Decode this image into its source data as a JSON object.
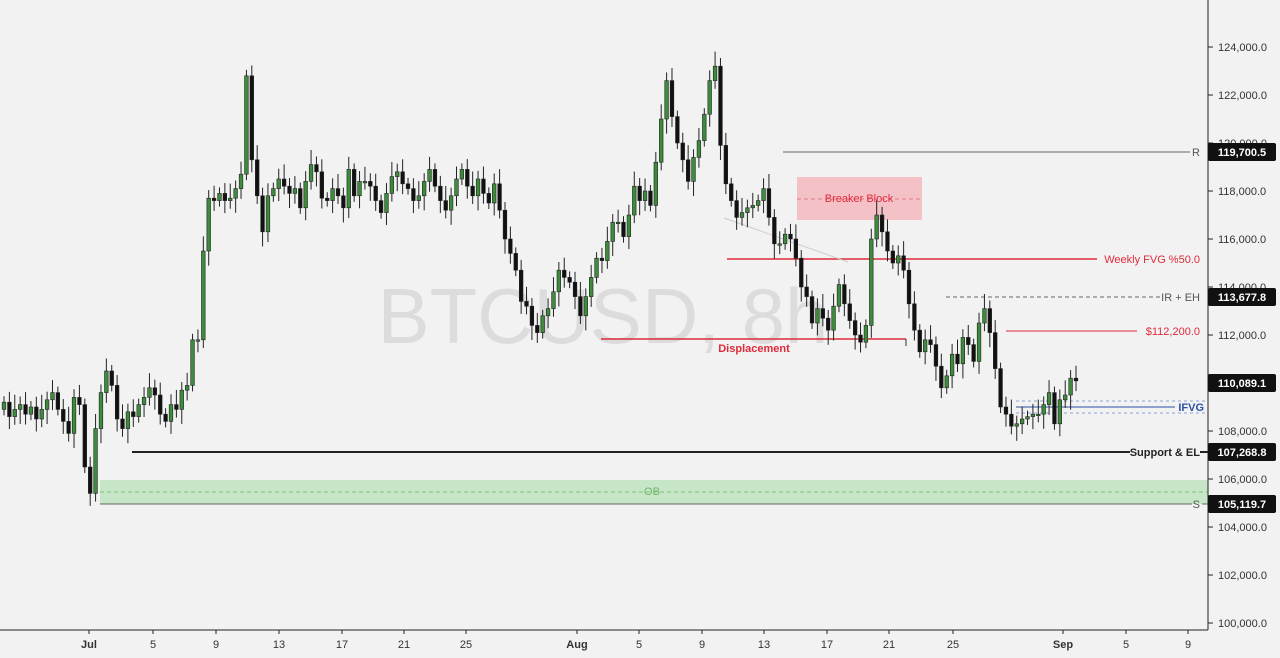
{
  "watermark": "BTCUSD, 8h",
  "colors": {
    "background": "#f2f2f2",
    "bull": "#3c8c3c",
    "bear": "#111111",
    "red": "#e02b3a",
    "blue": "#2f4fa8",
    "green_zone": "#bfe3bf",
    "pink_zone": "#f4b8c0",
    "tag_bg": "#111111"
  },
  "chart_data": {
    "type": "candlestick",
    "title": "",
    "xlabel": "",
    "ylabel": "",
    "ylim": [
      99800,
      125800
    ],
    "y_ticks": [
      "100,000.0",
      "102,000.0",
      "104,000.0",
      "106,000.0",
      "108,000.0",
      "110,000.0",
      "112,000.0",
      "114,000.0",
      "116,000.0",
      "118,000.0",
      "120,000.0",
      "122,000.0",
      "124,000.0"
    ],
    "x_ticks": [
      "Jul",
      "5",
      "9",
      "13",
      "17",
      "21",
      "25",
      "Aug",
      "5",
      "9",
      "13",
      "17",
      "21",
      "25",
      "Sep",
      "5",
      "9"
    ],
    "price_tags": [
      "119,700.5",
      "113,677.8",
      "110,089.1",
      "107,268.8",
      "105,119.7"
    ],
    "levels": [
      {
        "label": "R",
        "price": 119700
      },
      {
        "label": "Weekly FVG %50.0",
        "price": 115200
      },
      {
        "label": "IR + EH",
        "price": 113677
      },
      {
        "label": "$112,200.0",
        "price": 112200
      },
      {
        "label": "Displacement",
        "price": 111800
      },
      {
        "label": "IFVG",
        "price": 109100
      },
      {
        "label": "Support & EL",
        "price": 107268
      },
      {
        "label": "S",
        "price": 105119
      }
    ],
    "zones": [
      {
        "label": "Breaker Block",
        "from": 116800,
        "to": 118600
      },
      {
        "label": "OB",
        "from": 105400,
        "to": 106100
      }
    ],
    "closes": [
      109200,
      108600,
      108900,
      109100,
      108700,
      109000,
      108500,
      108900,
      109300,
      109600,
      108900,
      108400,
      107900,
      109400,
      109100,
      106500,
      105400,
      108100,
      109600,
      110500,
      109900,
      108500,
      108100,
      108800,
      108600,
      109100,
      109400,
      109800,
      109500,
      108700,
      108400,
      109100,
      108900,
      109700,
      109900,
      111800,
      111800,
      115500,
      117700,
      117600,
      117900,
      117600,
      117700,
      118100,
      118700,
      122800,
      119300,
      117800,
      116300,
      117800,
      118100,
      118500,
      118200,
      117900,
      118100,
      117300,
      118400,
      119100,
      118800,
      117700,
      117600,
      118100,
      117800,
      117300,
      118900,
      117800,
      118400,
      118400,
      118200,
      117600,
      117100,
      117900,
      118600,
      118800,
      118300,
      118100,
      117600,
      117800,
      118400,
      118900,
      118200,
      117600,
      117200,
      117800,
      118500,
      118900,
      118200,
      117800,
      118500,
      117900,
      117500,
      118300,
      117200,
      116000,
      115400,
      114700,
      113400,
      113200,
      112400,
      112100,
      112800,
      113100,
      113800,
      114700,
      114400,
      114200,
      113600,
      112800,
      113600,
      114400,
      115200,
      115100,
      115900,
      116700,
      116700,
      116100,
      117000,
      118200,
      117600,
      118000,
      117400,
      119200,
      121000,
      122600,
      121100,
      120000,
      119300,
      118400,
      119400,
      120100,
      121200,
      122600,
      123200,
      119900,
      118300,
      117600,
      116900,
      117100,
      117300,
      117400,
      117600,
      118100,
      116900,
      115800,
      115800,
      116200,
      116000,
      115200,
      114000,
      113600,
      112500,
      113100,
      112700,
      112200,
      113200,
      114100,
      113300,
      112600,
      112000,
      111700,
      112400,
      116000,
      117000,
      116300,
      115500,
      115000,
      115300,
      114700,
      113300,
      112200,
      111300,
      111800,
      111600,
      110700,
      109800,
      110300,
      111200,
      110800,
      111900,
      111600,
      110900,
      112500,
      113100,
      112100,
      110600,
      109000,
      108700,
      108200,
      108300,
      108500,
      108600,
      108700,
      108700,
      109100,
      109600,
      108300,
      109300,
      109500,
      110200,
      110089
    ]
  }
}
